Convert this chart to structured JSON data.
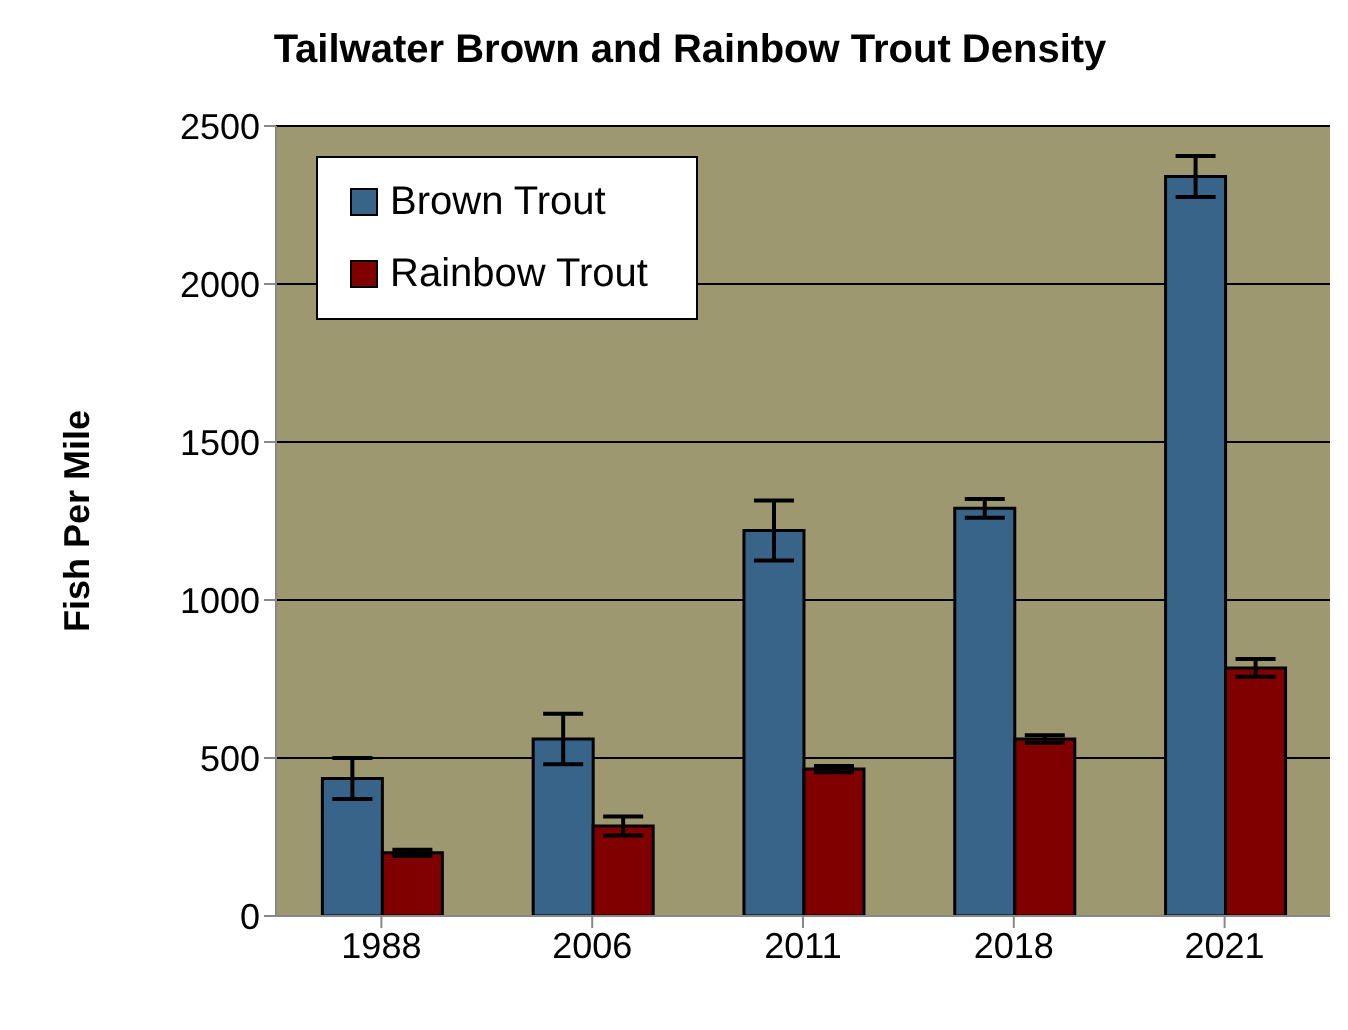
{
  "chart_data": {
    "type": "bar",
    "title": "Tailwater Brown and Rainbow Trout Density",
    "ylabel": "Fish Per Mile",
    "categories": [
      "1988",
      "2006",
      "2011",
      "2018",
      "2021"
    ],
    "series": [
      {
        "name": "Brown Trout",
        "color": "#376488",
        "values": [
          435,
          560,
          1220,
          1290,
          2340
        ],
        "errors": [
          65,
          80,
          95,
          30,
          65
        ]
      },
      {
        "name": "Rainbow Trout",
        "color": "#800000",
        "values": [
          200,
          285,
          465,
          560,
          785
        ],
        "errors": [
          10,
          30,
          10,
          12,
          28
        ]
      }
    ],
    "ylim": [
      0,
      2500
    ],
    "yticks": [
      0,
      500,
      1000,
      1500,
      2000,
      2500
    ],
    "grid": "y",
    "legend": "top left"
  }
}
